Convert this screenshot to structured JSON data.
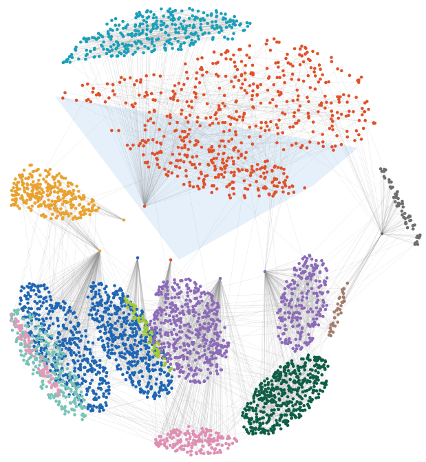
{
  "graph": {
    "background": "#ffffff",
    "edge_color": "#9a9a9a",
    "hull_color": "#cfe3f5",
    "clusters": [
      {
        "name": "cluster-teal-top",
        "color": "#1aa0b8",
        "count": 320
      },
      {
        "name": "cluster-orange-red",
        "color": "#e0512a",
        "count": 620
      },
      {
        "name": "cluster-yellow-orange",
        "color": "#e9a230",
        "count": 300
      },
      {
        "name": "cluster-gray",
        "color": "#6e6e6e",
        "count": 60
      },
      {
        "name": "cluster-blue-left",
        "color": "#1f66b3",
        "count": 420
      },
      {
        "name": "cluster-blue-middle",
        "color": "#1f66b3",
        "count": 460
      },
      {
        "name": "cluster-lime",
        "color": "#a6c93a",
        "count": 70
      },
      {
        "name": "cluster-purple-middle",
        "color": "#8c6bb8",
        "count": 440
      },
      {
        "name": "cluster-purple-right",
        "color": "#8c6bb8",
        "count": 220
      },
      {
        "name": "cluster-mint",
        "color": "#79c3b7",
        "count": 260
      },
      {
        "name": "cluster-pink-left",
        "color": "#e39ab9",
        "count": 80
      },
      {
        "name": "cluster-dark-green",
        "color": "#0f5e46",
        "count": 420
      },
      {
        "name": "cluster-pink-bottom",
        "color": "#de8fb3",
        "count": 170
      },
      {
        "name": "cluster-brown",
        "color": "#a47c6e",
        "count": 35
      }
    ]
  }
}
